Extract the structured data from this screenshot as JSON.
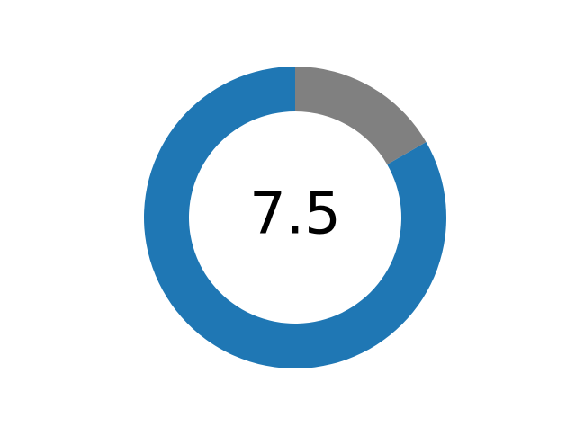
{
  "chart_data": {
    "type": "pie",
    "subtype": "donut",
    "center_label": "7.5",
    "values": [
      7.5,
      1.5
    ],
    "max_value": 9,
    "colors": [
      "#1f77b4",
      "#808080"
    ],
    "legend": "none",
    "grid": false
  }
}
